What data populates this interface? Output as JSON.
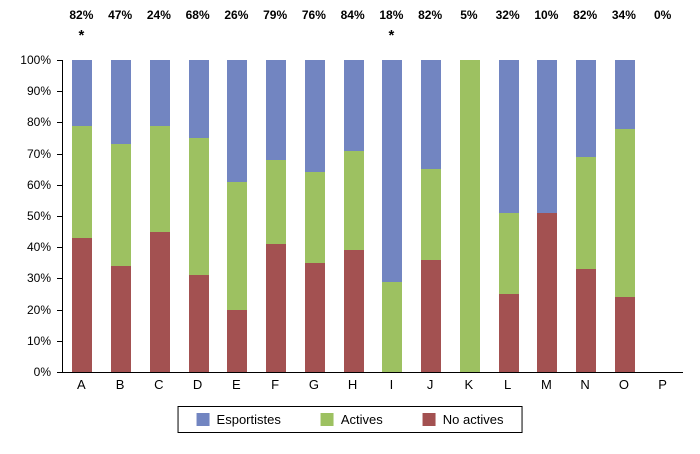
{
  "chart_data": {
    "type": "bar",
    "subtype": "stacked_percent",
    "title": "",
    "xlabel": "",
    "ylabel": "",
    "ylim": [
      0,
      100
    ],
    "grid": false,
    "legend_position": "bottom",
    "categories": [
      "A",
      "B",
      "C",
      "D",
      "E",
      "F",
      "G",
      "H",
      "I",
      "J",
      "K",
      "L",
      "M",
      "N",
      "O",
      "P"
    ],
    "top_labels": [
      "82%",
      "47%",
      "24%",
      "68%",
      "26%",
      "79%",
      "76%",
      "84%",
      "18%",
      "82%",
      "5%",
      "32%",
      "10%",
      "82%",
      "34%",
      "0%"
    ],
    "asterisk_indices": [
      0,
      8
    ],
    "asterisk_symbol": "*",
    "y_ticks": [
      "100%",
      "90%",
      "80%",
      "70%",
      "60%",
      "50%",
      "40%",
      "30%",
      "20%",
      "10%",
      "0%"
    ],
    "series": [
      {
        "name": "No actives",
        "color": "#a35151",
        "values": [
          43,
          34,
          45,
          31,
          20,
          41,
          35,
          39,
          0,
          36,
          0,
          25,
          51,
          33,
          24,
          0
        ]
      },
      {
        "name": "Actives",
        "color": "#9dc161",
        "values": [
          36,
          39,
          34,
          44,
          41,
          27,
          29,
          32,
          29,
          29,
          100,
          26,
          0,
          36,
          54,
          0
        ]
      },
      {
        "name": "Esportistes",
        "color": "#7285c1",
        "values": [
          21,
          27,
          21,
          25,
          39,
          32,
          36,
          29,
          71,
          35,
          0,
          49,
          49,
          31,
          22,
          0
        ]
      }
    ],
    "legend": [
      {
        "label": "Esportistes",
        "color": "#7285c1"
      },
      {
        "label": "Actives",
        "color": "#9dc161"
      },
      {
        "label": "No actives",
        "color": "#a35151"
      }
    ]
  }
}
